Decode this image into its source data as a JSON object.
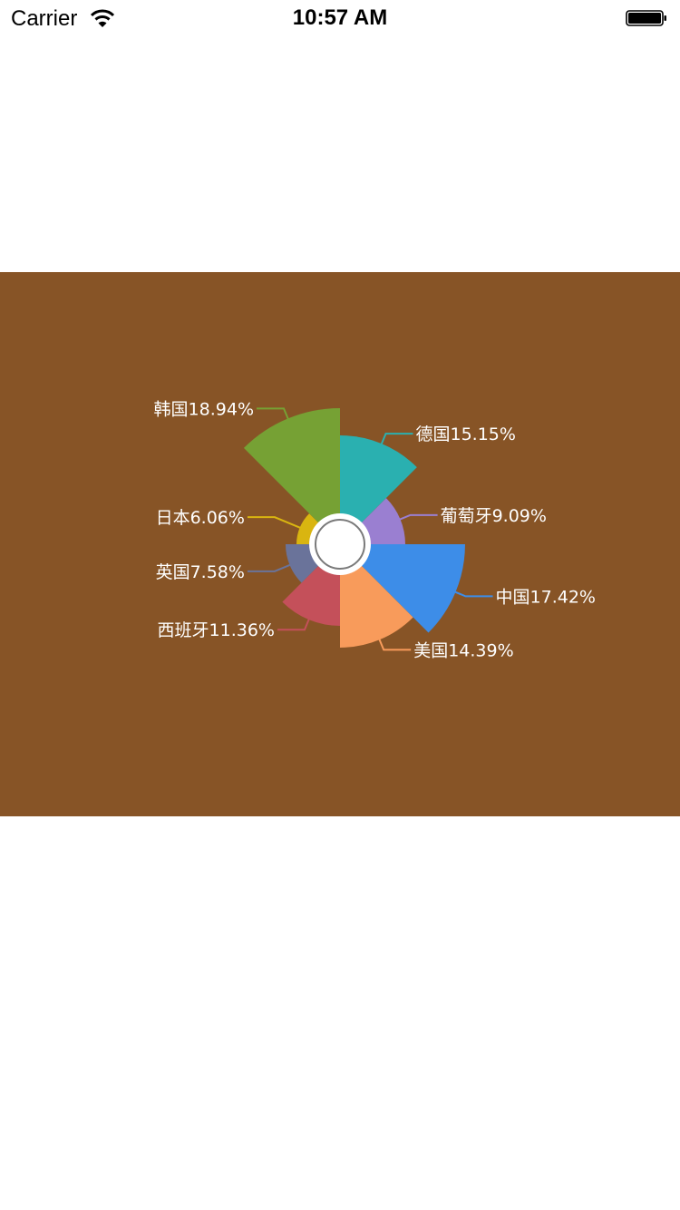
{
  "status_bar": {
    "carrier": "Carrier",
    "time": "10:57 AM",
    "icons": [
      "wifi-icon",
      "battery-icon"
    ]
  },
  "colors": {
    "panel_background": "#875426",
    "center_hole": "#ffffff",
    "center_ring": "#7a7a7a"
  },
  "chart_data": {
    "type": "pie",
    "variant": "nightingale-rose",
    "categories": [
      "德国",
      "葡萄牙",
      "中国",
      "美国",
      "西班牙",
      "英国",
      "日本",
      "韩国"
    ],
    "values": [
      15.15,
      9.09,
      17.42,
      14.39,
      11.36,
      7.58,
      6.06,
      18.94
    ],
    "labels": [
      "德国15.15%",
      "葡萄牙9.09%",
      "中国17.42%",
      "美国14.39%",
      "西班牙11.36%",
      "英国7.58%",
      "日本6.06%",
      "韩国18.94%"
    ],
    "colors": [
      "#2ab0b0",
      "#9a7fd1",
      "#3d8de8",
      "#f89b5b",
      "#c4505a",
      "#6a739a",
      "#d9b510",
      "#76a134"
    ],
    "slice_angle_degrees": 45,
    "start_angle": "top, clockwise",
    "legend": "none"
  }
}
